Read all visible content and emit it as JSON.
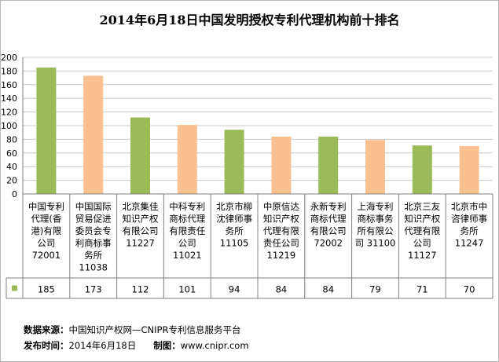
{
  "title": "2014年6月18日中国发明授权专利代理机构前十排名",
  "chart_data": {
    "type": "bar",
    "title": "2014年6月18日中国发明授权专利代理机构前十排名",
    "categories": [
      [
        "中国专利",
        "代理(香",
        "港)有限",
        "公司",
        "72001"
      ],
      [
        "中国国际",
        "贸易促进",
        "委员会专",
        "利商标事",
        "务所",
        "11038"
      ],
      [
        "北京集佳",
        "知识产权",
        "有限公司",
        "11227"
      ],
      [
        "中科专利",
        "商标代理",
        "有限责任",
        "公司",
        "11021"
      ],
      [
        "北京市柳",
        "沈律师事",
        "务所",
        "11105"
      ],
      [
        "中原信达",
        "知识产权",
        "代理有限",
        "责任公司",
        "11219"
      ],
      [
        "永新专利",
        "商标代理",
        "有限公司",
        "72002"
      ],
      [
        "上海专利",
        "商标事务",
        "所有限公",
        "司 31100"
      ],
      [
        "北京三友",
        "知识产权",
        "代理有限",
        "公司",
        "11127"
      ],
      [
        "北京市中",
        "咨律师事",
        "务所",
        "11247"
      ]
    ],
    "values": [
      185,
      173,
      112,
      101,
      94,
      84,
      84,
      79,
      71,
      70
    ],
    "bar_colors": [
      "#9bbb59",
      "#fac090",
      "#9bbb59",
      "#fac090",
      "#9bbb59",
      "#fac090",
      "#9bbb59",
      "#fac090",
      "#9bbb59",
      "#fac090"
    ],
    "ylim": [
      0,
      200
    ],
    "yticks": [
      0,
      20,
      40,
      60,
      80,
      100,
      120,
      140,
      160,
      180,
      200
    ],
    "grid": true,
    "legend_swatch_color": "#9bbb59"
  },
  "footer": {
    "source_label": "数据来源：",
    "source_value": "中国知识产权网—CNIPR专利信息服务平台",
    "date_label": "发布时间：",
    "date_value": "2014年6月18日",
    "maker_label": "制图：",
    "maker_value": "www.cnipr.com"
  }
}
